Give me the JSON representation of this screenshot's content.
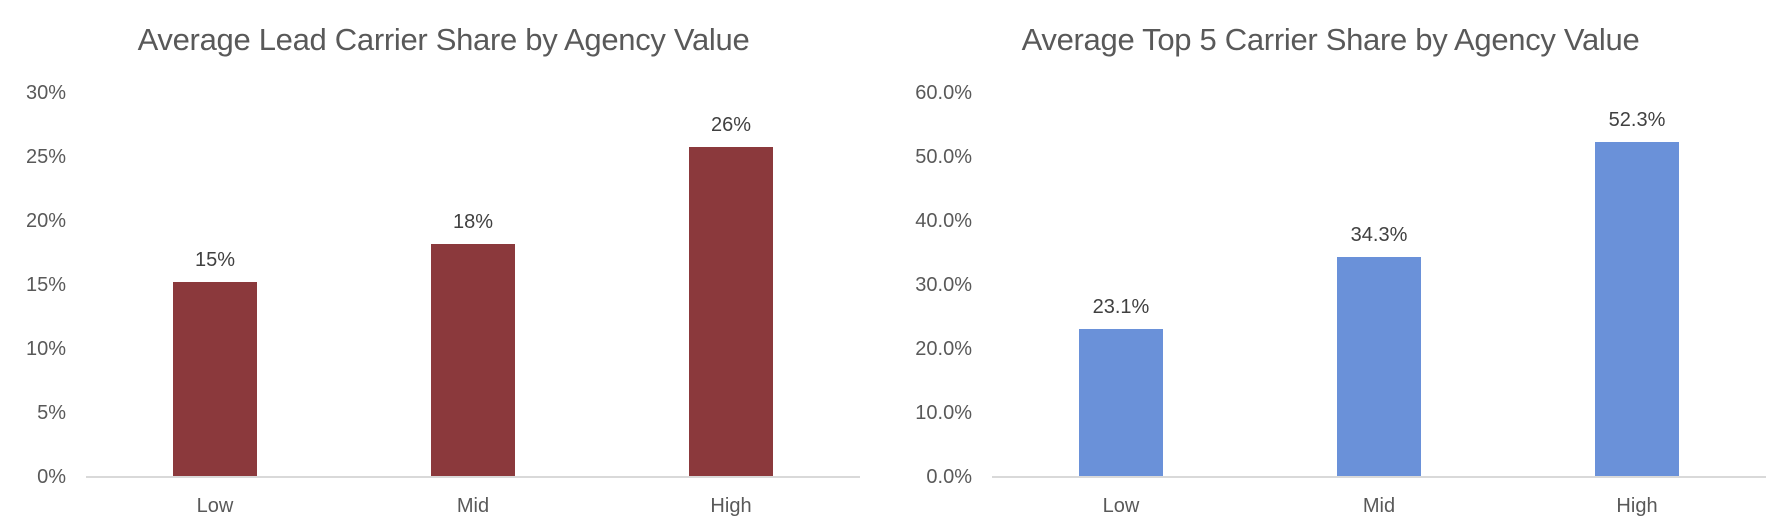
{
  "page": {
    "background": "#FFFFFF"
  },
  "theme": {
    "title_color": "#595959",
    "tick_label_color": "#595959",
    "data_label_color": "#404040",
    "axis_line_color": "#D9D9D9"
  },
  "chart_data": [
    {
      "type": "bar",
      "title": "Average Lead Carrier Share by Agency Value",
      "categories": [
        "Low",
        "Mid",
        "High"
      ],
      "values": [
        15.2,
        18.2,
        25.8
      ],
      "data_labels": [
        "15%",
        "18%",
        "26%"
      ],
      "y_ticks": [
        "30%",
        "25%",
        "20%",
        "15%",
        "10%",
        "5%",
        "0%"
      ],
      "ylim": [
        0,
        30
      ],
      "xlabel": "",
      "ylabel": "",
      "grid": false,
      "legend": "none",
      "bar_color": "#8B393C"
    },
    {
      "type": "bar",
      "title": "Average Top 5 Carrier Share by Agency Value",
      "categories": [
        "Low",
        "Mid",
        "High"
      ],
      "values": [
        23.1,
        34.3,
        52.3
      ],
      "data_labels": [
        "23.1%",
        "34.3%",
        "52.3%"
      ],
      "y_ticks": [
        "60.0%",
        "50.0%",
        "40.0%",
        "30.0%",
        "20.0%",
        "10.0%",
        "0.0%"
      ],
      "ylim": [
        0,
        60
      ],
      "xlabel": "",
      "ylabel": "",
      "grid": false,
      "legend": "none",
      "bar_color": "#6A91D9"
    }
  ]
}
